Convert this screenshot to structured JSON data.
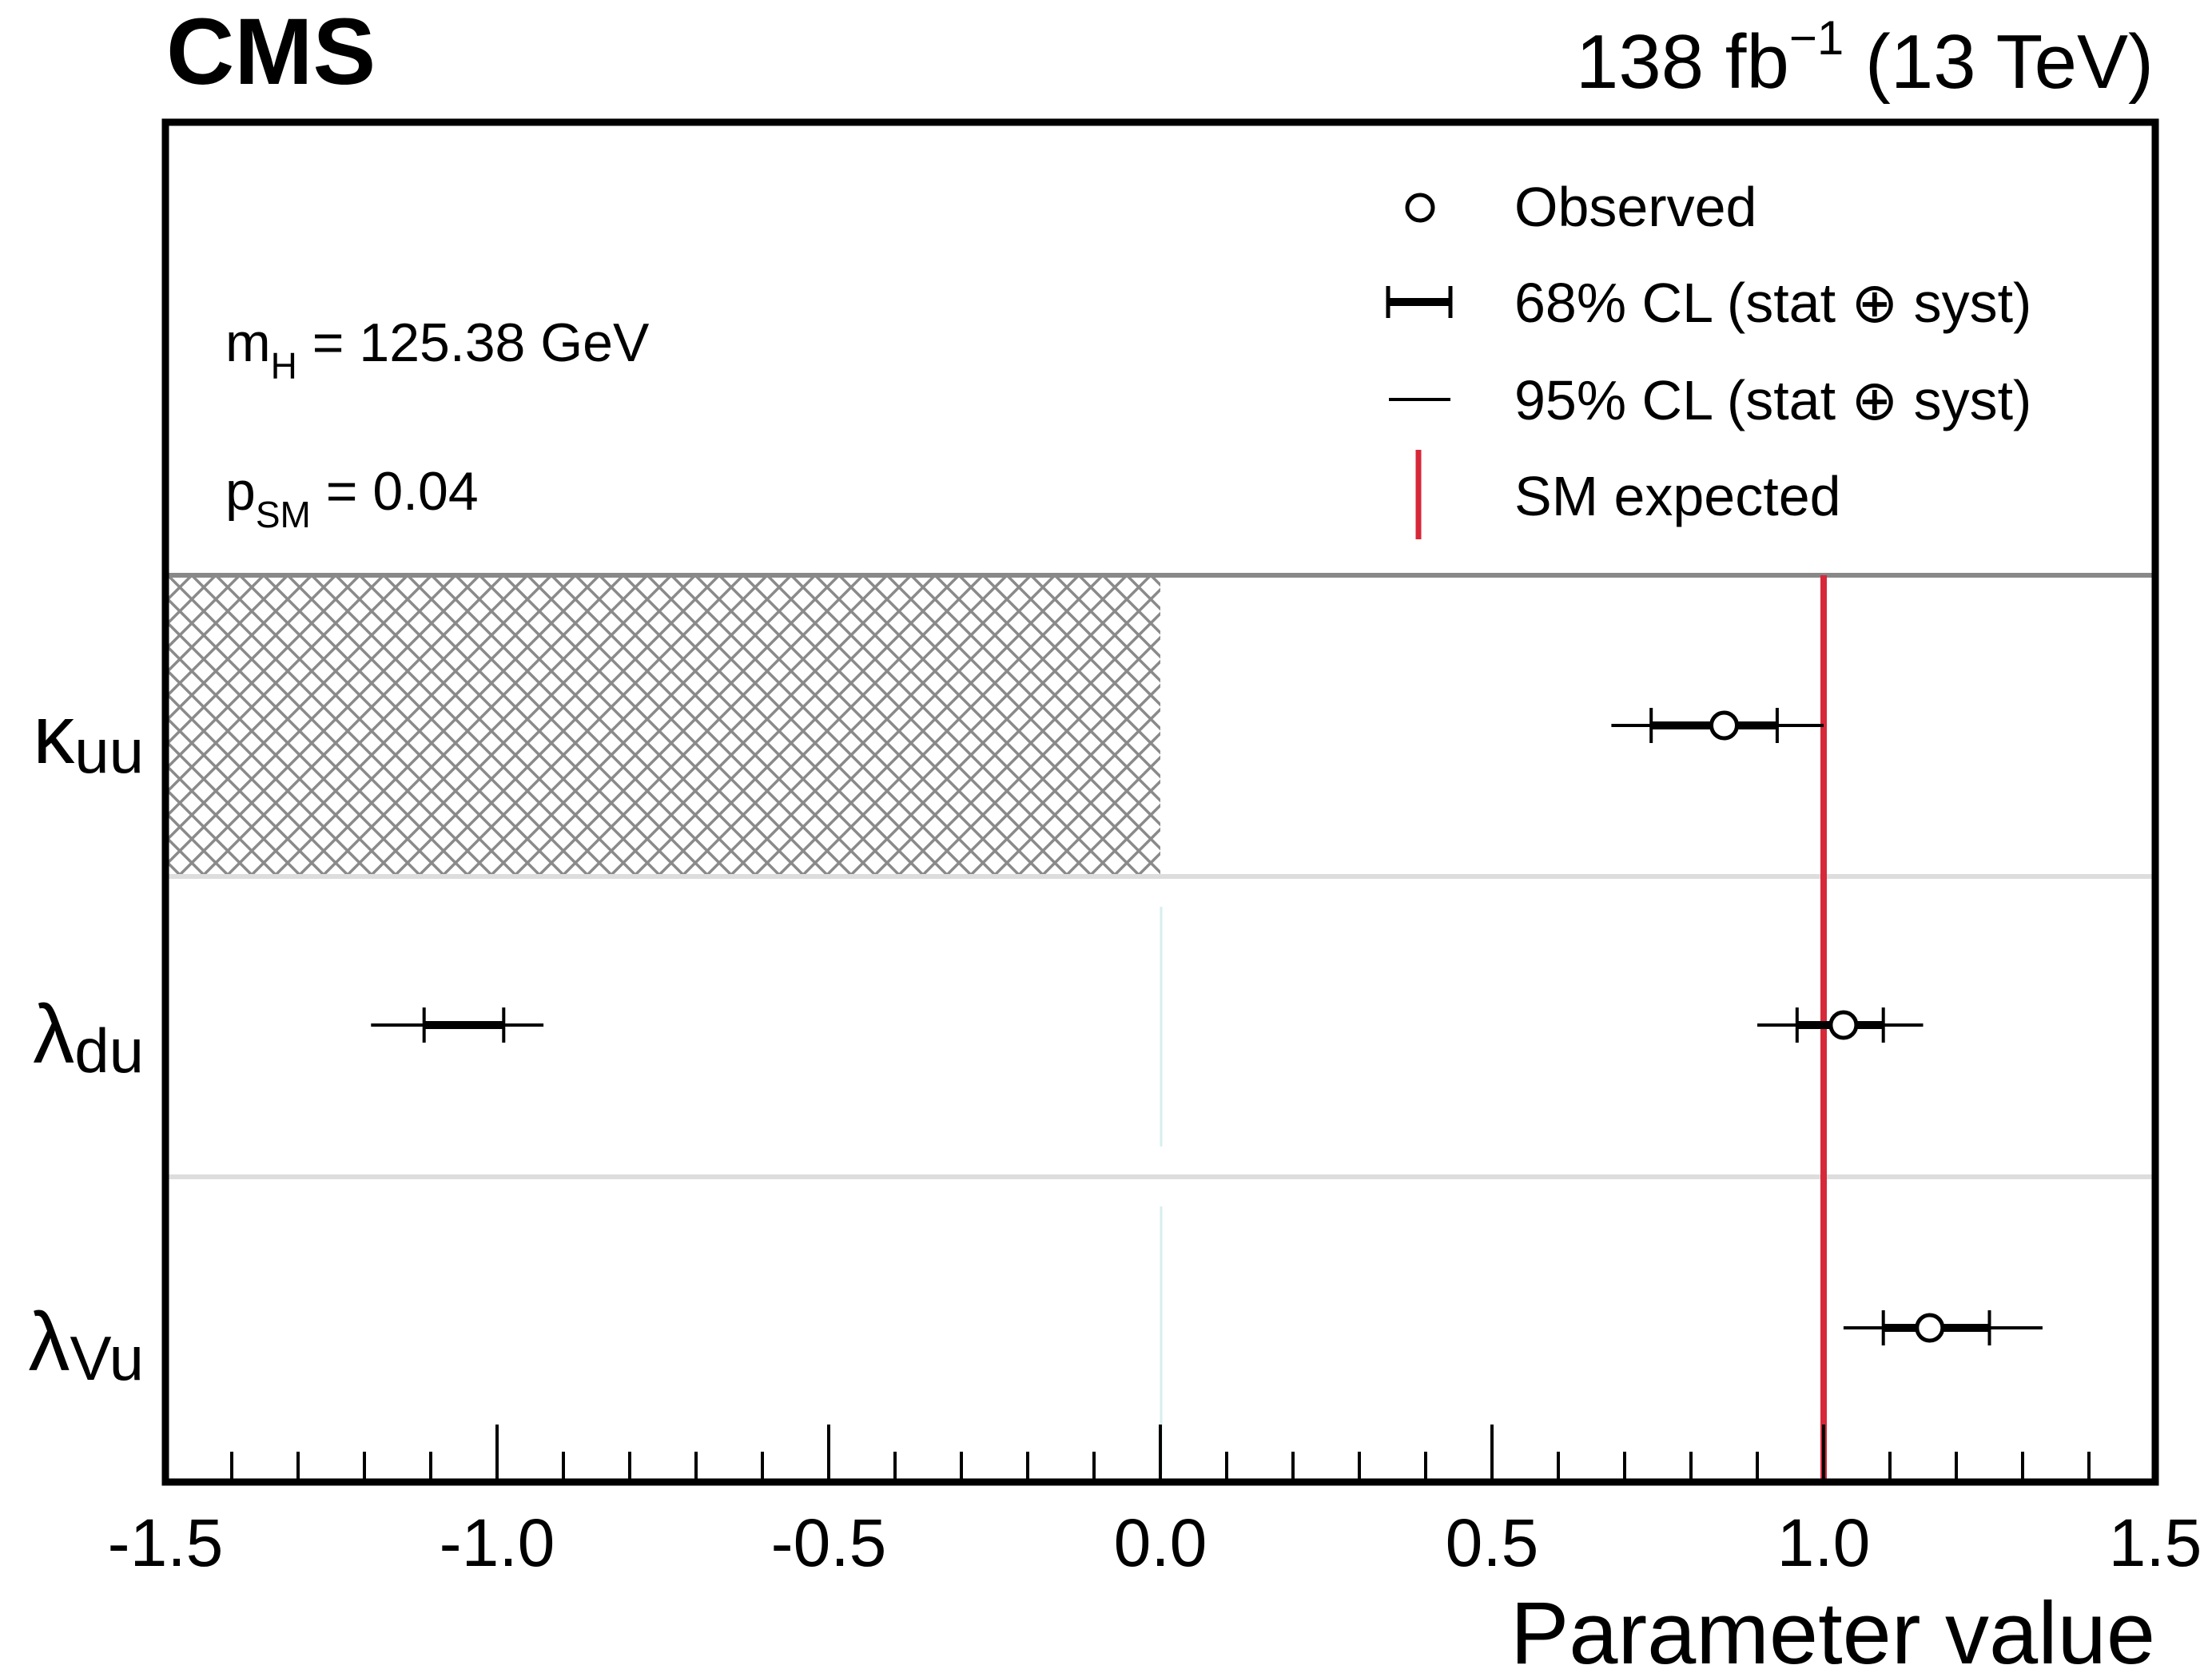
{
  "header": {
    "experiment": "CMS",
    "lumi": "138 fb",
    "lumi_exponent": "−1",
    "energy": " (13 TeV)"
  },
  "info": {
    "mass_base": "m",
    "mass_sub": "H",
    "mass_rest": " = 125.38 GeV",
    "p_base": "p",
    "p_sub": "SM",
    "p_rest": " = 0.04"
  },
  "legend": {
    "observed": "Observed",
    "cl68": "68% CL (stat ⊕ syst)",
    "cl95": "95% CL (stat ⊕ syst)",
    "sm": "SM expected"
  },
  "chart_data": {
    "type": "scatter",
    "xlabel": "Parameter value",
    "xlim": [
      -1.5,
      1.5
    ],
    "x_ticks": [
      -1.5,
      -1.0,
      -0.5,
      0.0,
      0.5,
      1.0,
      1.5
    ],
    "x_tick_labels": [
      "-1.5",
      "-1.0",
      "-0.5",
      "0.0",
      "0.5",
      "1.0",
      "1.5"
    ],
    "sm_value": 1.0,
    "excluded_region": {
      "parameter": "κ_uu",
      "from": -1.5,
      "to": 0.0
    },
    "parameters": [
      {
        "label_base": "κ",
        "label_sub": "uu",
        "best_fit": 0.85,
        "intervals_68": [
          [
            0.74,
            0.93
          ]
        ],
        "intervals_95": [
          [
            0.68,
            1.0
          ]
        ]
      },
      {
        "label_base": "λ",
        "label_sub": "du",
        "best_fit": 1.03,
        "intervals_68": [
          [
            -1.11,
            -0.99
          ],
          [
            0.96,
            1.09
          ]
        ],
        "intervals_95": [
          [
            -1.19,
            -0.93
          ],
          [
            0.9,
            1.15
          ]
        ]
      },
      {
        "label_base": "λ",
        "label_sub": "Vu",
        "best_fit": 1.16,
        "intervals_68": [
          [
            1.09,
            1.25
          ]
        ],
        "intervals_95": [
          [
            1.03,
            1.33
          ]
        ]
      }
    ],
    "colors": {
      "sm_line": "#d62839",
      "hatch": "#8a8a8a",
      "separator": "#dddddd",
      "legend_separator": "#888888"
    }
  }
}
